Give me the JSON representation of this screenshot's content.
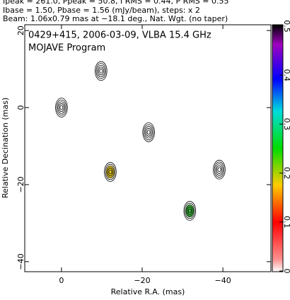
{
  "chart_data": {
    "type": "contour",
    "header": [
      "Ipeak = 261.0, Ppeak = 50.8, I RMS = 0.44, P RMS = 0.55",
      "Ibase = 1.50, Pbase = 1.56 (mJy/beam), steps: x 2",
      "Beam: 1.06x0.79 mas at −18.1 deg., Nat. Wgt. (no taper)"
    ],
    "title": "0429+415, 2006-03-09, VLBA 15.4 GHz",
    "subtitle": "MOJAVE Program",
    "x_label": "Relative R.A. (mas)",
    "y_label": "Relative Decination (mas)",
    "xlim": [
      9.1,
      -51.9
    ],
    "xticks": [
      0,
      {
        "value": -20,
        "label": "−20"
      },
      {
        "value": -40,
        "label": "−40"
      }
    ],
    "ylim": [
      -42.6,
      21.5
    ],
    "yticks": [
      20,
      0,
      {
        "value": -20,
        "label": "−20"
      },
      {
        "value": -40,
        "label": "−40"
      }
    ],
    "colorbar_lim": [
      0,
      0.5
    ],
    "colorbar_ticks": [
      0,
      0.1,
      0.2,
      0.3,
      0.4,
      0.5
    ],
    "components": [
      {
        "x": 0,
        "y": 0,
        "color": "#000000"
      },
      {
        "x": -12.1,
        "y": -16.7,
        "color": "#e0c000"
      },
      {
        "x": -21.6,
        "y": -6.4,
        "color": "#000000"
      },
      {
        "x": -39.1,
        "y": -16.1,
        "color": "#000000"
      },
      {
        "x": -31.8,
        "y": -26.8,
        "color": "#20b020"
      },
      {
        "x": -9.8,
        "y": 9.5,
        "color": "#000000"
      }
    ]
  }
}
